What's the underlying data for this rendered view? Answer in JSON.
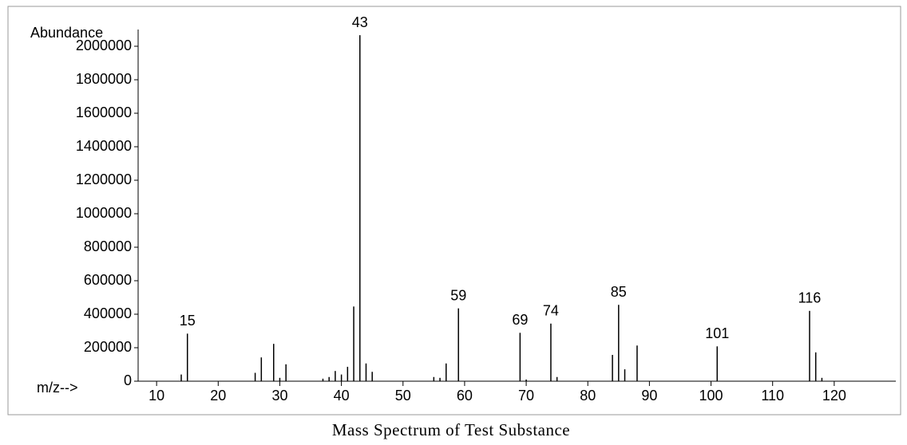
{
  "chart_data": {
    "type": "stem",
    "title": "Mass Spectrum of Test Substance",
    "y_label": "Abundance",
    "x_label": "m/z-->",
    "color": "#000000",
    "x": [
      14,
      15,
      26,
      27,
      29,
      30,
      31,
      37,
      38,
      39,
      40,
      41,
      42,
      43,
      44,
      45,
      55,
      56,
      57,
      59,
      69,
      70,
      74,
      75,
      84,
      85,
      86,
      88,
      101,
      116,
      117,
      118
    ],
    "values": [
      40000,
      284000,
      50000,
      142000,
      223000,
      20000,
      101000,
      15000,
      25000,
      61000,
      40000,
      86000,
      446000,
      2066000,
      106000,
      56000,
      25000,
      20000,
      106000,
      435000,
      289000,
      10000,
      344000,
      25000,
      157000,
      456000,
      71000,
      213000,
      208000,
      420000,
      172000,
      20000
    ],
    "peak_labels": [
      null,
      "15",
      null,
      null,
      null,
      null,
      null,
      null,
      null,
      null,
      null,
      null,
      null,
      "43",
      null,
      null,
      null,
      null,
      null,
      "59",
      "69",
      null,
      "74",
      null,
      null,
      "85",
      null,
      null,
      "101",
      "116",
      null,
      null
    ],
    "xlim": [
      7,
      130
    ],
    "ylim": [
      0,
      2100000
    ],
    "xticks": [
      10,
      20,
      30,
      40,
      50,
      60,
      70,
      80,
      90,
      100,
      110,
      120
    ],
    "yticks": [
      0,
      200000,
      400000,
      600000,
      800000,
      1000000,
      1200000,
      1400000,
      1600000,
      1800000,
      2000000
    ]
  }
}
